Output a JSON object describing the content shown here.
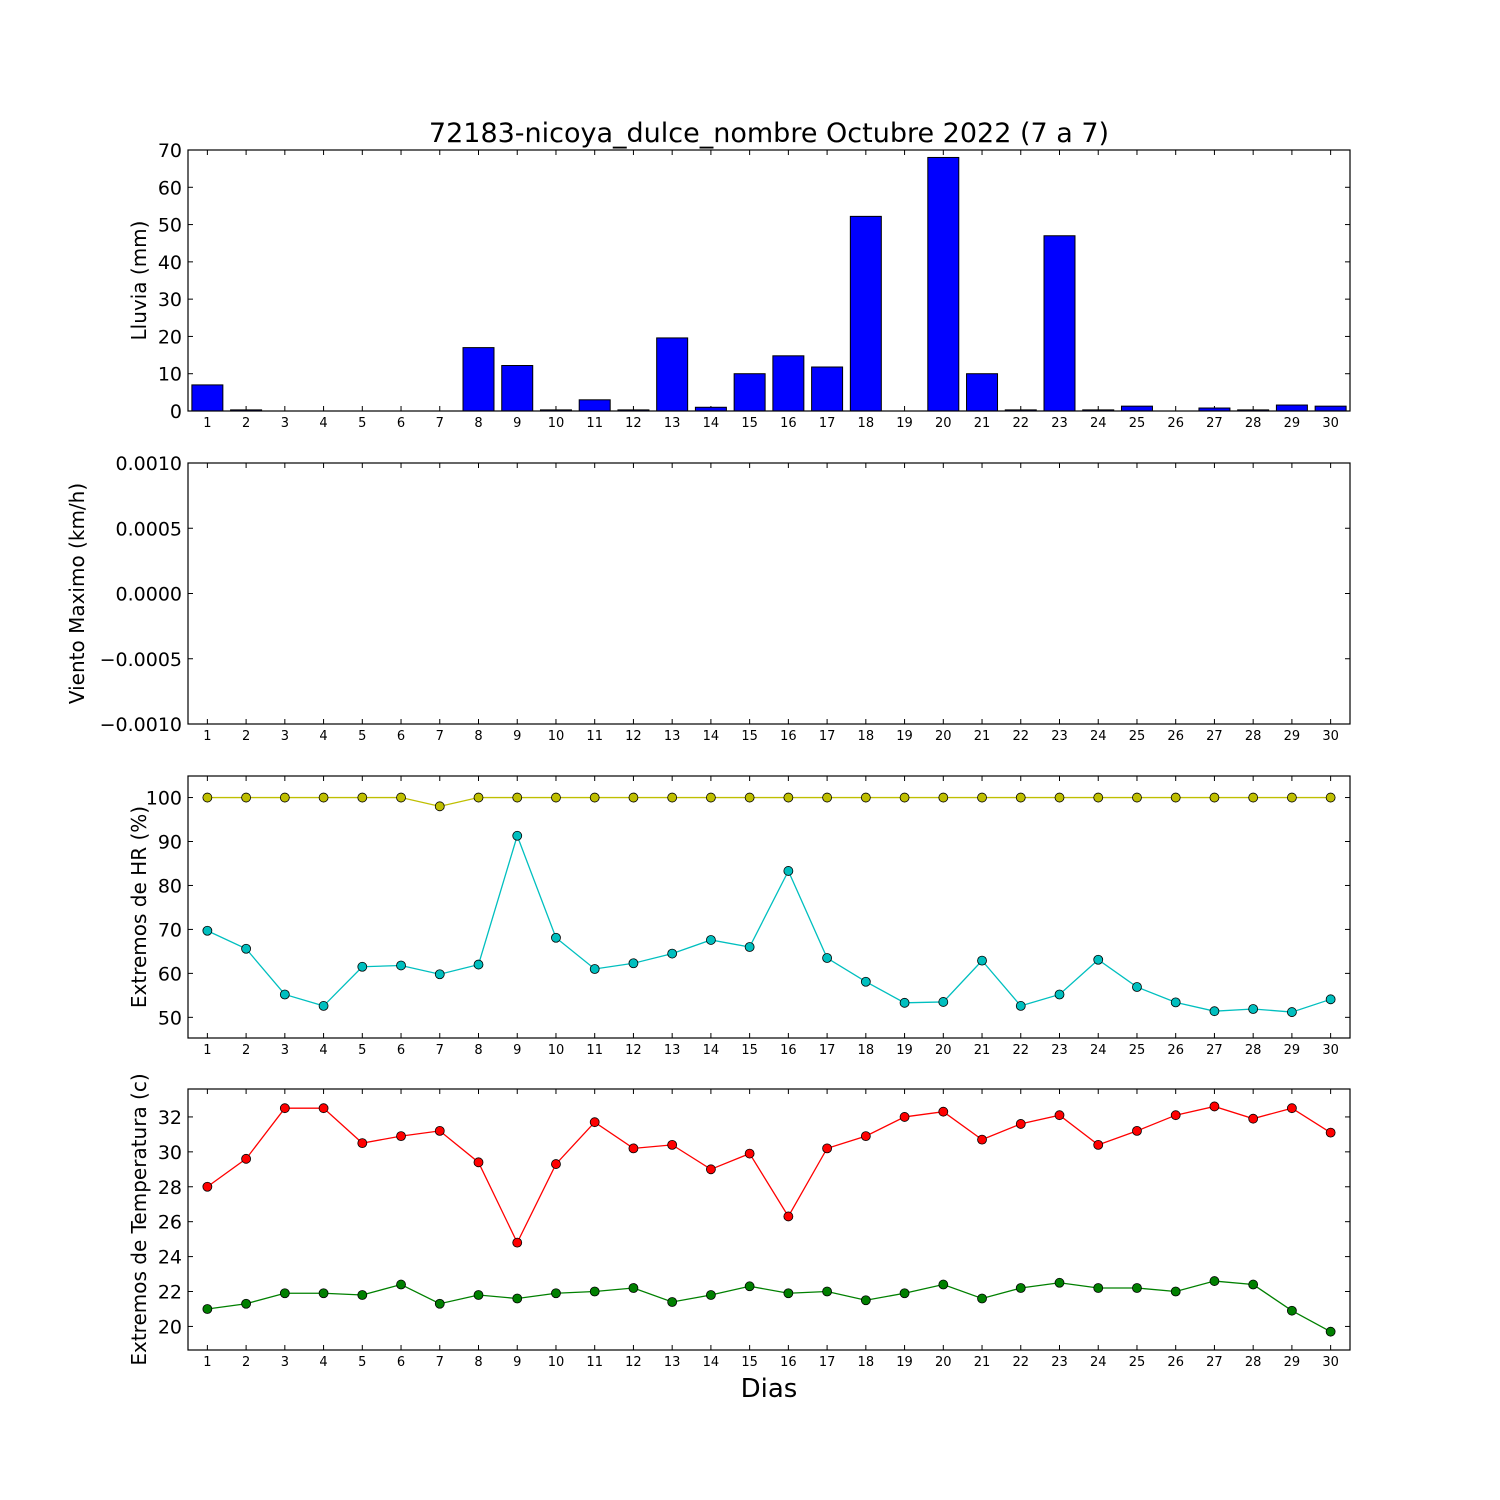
{
  "figure": {
    "title": "72183-nicoya_dulce_nombre Octubre 2022  (7 a 7)",
    "xlabel": "Dias"
  },
  "chart_data": [
    {
      "type": "bar",
      "ylabel": "Lluvia (mm)",
      "ylim": [
        0,
        70
      ],
      "yticks": [
        0,
        10,
        20,
        30,
        40,
        50,
        60,
        70
      ],
      "categories": [
        1,
        2,
        3,
        4,
        5,
        6,
        7,
        8,
        9,
        10,
        11,
        12,
        13,
        14,
        15,
        16,
        17,
        18,
        19,
        20,
        21,
        22,
        23,
        24,
        25,
        26,
        27,
        28,
        29,
        30
      ],
      "series": [
        {
          "color": "#0000ff",
          "values": [
            7.0,
            0.3,
            0,
            0,
            0,
            0,
            0,
            17.0,
            12.2,
            0.3,
            3.0,
            0.3,
            19.6,
            1.0,
            10.0,
            14.8,
            11.8,
            52.2,
            0,
            68.0,
            10.0,
            0.3,
            47.0,
            0.3,
            1.3,
            0,
            0.8,
            0.3,
            1.6,
            1.3
          ]
        }
      ]
    },
    {
      "type": "line",
      "ylabel": "Viento Maximo (km/h)",
      "ylim": [
        -0.001,
        0.001
      ],
      "yticks": [
        "0.0010",
        "0.0005",
        "0.0000",
        "−0.0005",
        "−0.0010"
      ],
      "categories": [
        1,
        2,
        3,
        4,
        5,
        6,
        7,
        8,
        9,
        10,
        11,
        12,
        13,
        14,
        15,
        16,
        17,
        18,
        19,
        20,
        21,
        22,
        23,
        24,
        25,
        26,
        27,
        28,
        29,
        30
      ],
      "series": []
    },
    {
      "type": "line",
      "ylabel": "Extremos de HR (%)",
      "ylim": [
        45.3,
        104.9
      ],
      "yticks": [
        50,
        60,
        70,
        80,
        90,
        100
      ],
      "categories": [
        1,
        2,
        3,
        4,
        5,
        6,
        7,
        8,
        9,
        10,
        11,
        12,
        13,
        14,
        15,
        16,
        17,
        18,
        19,
        20,
        21,
        22,
        23,
        24,
        25,
        26,
        27,
        28,
        29,
        30
      ],
      "series": [
        {
          "color": "#bfbf00",
          "values": [
            100,
            100,
            100,
            100,
            100,
            100,
            98,
            100,
            100,
            100,
            100,
            100,
            100,
            100,
            100,
            100,
            100,
            100,
            100,
            100,
            100,
            100,
            100,
            100,
            100,
            100,
            100,
            100,
            100,
            100
          ]
        },
        {
          "color": "#00bfbf",
          "values": [
            69.7,
            65.6,
            55.2,
            52.6,
            61.5,
            61.8,
            59.8,
            62.0,
            91.3,
            68.1,
            61.0,
            62.3,
            64.5,
            67.6,
            66.0,
            83.3,
            63.5,
            58.1,
            53.3,
            53.5,
            62.9,
            52.6,
            55.2,
            63.1,
            56.9,
            53.4,
            51.4,
            51.9,
            51.2,
            54.1
          ]
        }
      ]
    },
    {
      "type": "line",
      "ylabel": "Extremos de Temperatura (c)",
      "ylim": [
        18.65,
        33.6
      ],
      "yticks": [
        20,
        22,
        24,
        26,
        28,
        30,
        32
      ],
      "categories": [
        1,
        2,
        3,
        4,
        5,
        6,
        7,
        8,
        9,
        10,
        11,
        12,
        13,
        14,
        15,
        16,
        17,
        18,
        19,
        20,
        21,
        22,
        23,
        24,
        25,
        26,
        27,
        28,
        29,
        30
      ],
      "series": [
        {
          "color": "#ff0000",
          "values": [
            28.0,
            29.6,
            32.5,
            32.5,
            30.5,
            30.9,
            31.2,
            29.4,
            24.8,
            29.3,
            31.7,
            30.2,
            30.4,
            29.0,
            29.9,
            26.3,
            30.2,
            30.9,
            32.0,
            32.3,
            30.7,
            31.6,
            32.1,
            30.4,
            31.2,
            32.1,
            32.6,
            31.9,
            32.5,
            31.1
          ]
        },
        {
          "color": "#008000",
          "values": [
            21.0,
            21.3,
            21.9,
            21.9,
            21.8,
            22.4,
            21.3,
            21.8,
            21.6,
            21.9,
            22.0,
            22.2,
            21.4,
            21.8,
            22.3,
            21.9,
            22.0,
            21.5,
            21.9,
            22.4,
            21.6,
            22.2,
            22.5,
            22.2,
            22.2,
            22.0,
            22.6,
            22.4,
            20.9,
            19.7
          ]
        }
      ]
    }
  ]
}
